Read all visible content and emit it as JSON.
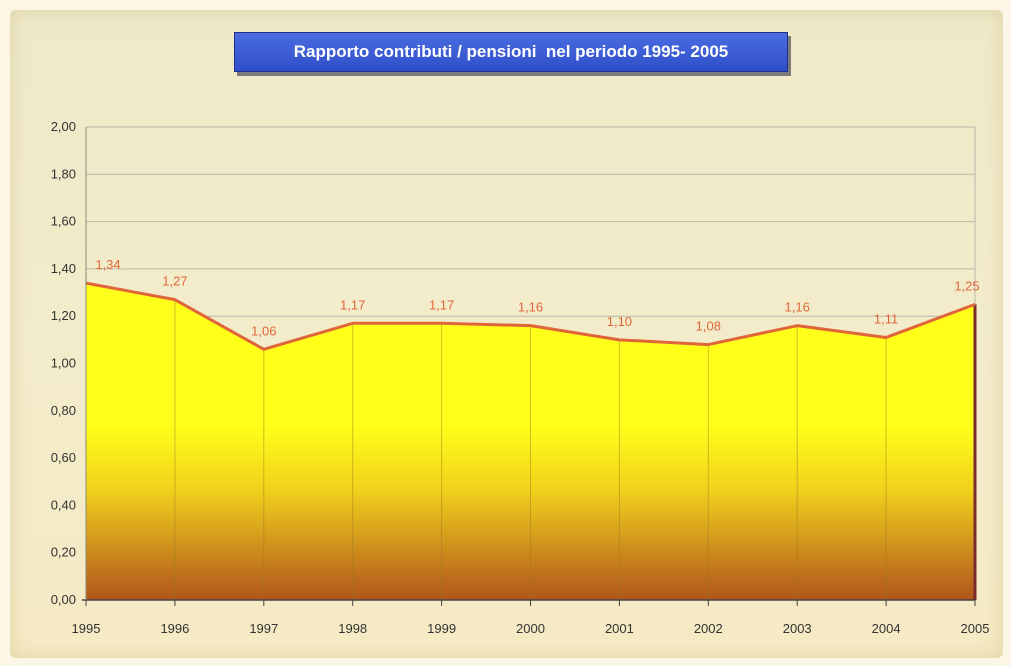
{
  "chart_data": {
    "type": "area",
    "title": "Rapporto contributi / pensioni  nel periodo 1995- 2005",
    "x": [
      "1995",
      "1996",
      "1997",
      "1998",
      "1999",
      "2000",
      "2001",
      "2002",
      "2003",
      "2004",
      "2005"
    ],
    "values": [
      1.34,
      1.27,
      1.06,
      1.17,
      1.17,
      1.16,
      1.1,
      1.08,
      1.16,
      1.11,
      1.25
    ],
    "data_labels": [
      "1,34",
      "1,27",
      "1,06",
      "1,17",
      "1,17",
      "1,16",
      "1,10",
      "1,08",
      "1,16",
      "1,11",
      "1,25"
    ],
    "y_ticks": [
      0,
      0.2,
      0.4,
      0.6,
      0.8,
      1.0,
      1.2,
      1.4,
      1.6,
      1.8,
      2.0
    ],
    "y_tick_labels": [
      "0,00",
      "0,20",
      "0,40",
      "0,60",
      "0,80",
      "1,00",
      "1,20",
      "1,40",
      "1,60",
      "1,80",
      "2,00"
    ],
    "ylim": [
      0,
      2.0
    ],
    "xlabel": "",
    "ylabel": "",
    "grid": true,
    "legend": "none",
    "colors": {
      "line": "#e0663a",
      "fill_top": "#ffff1a",
      "fill_mid": "#f1d21c",
      "fill_bottom": "#b0551b",
      "grid": "#b9b7aa",
      "label": "#e0663a",
      "title_bg": "#3b5bd6"
    }
  }
}
